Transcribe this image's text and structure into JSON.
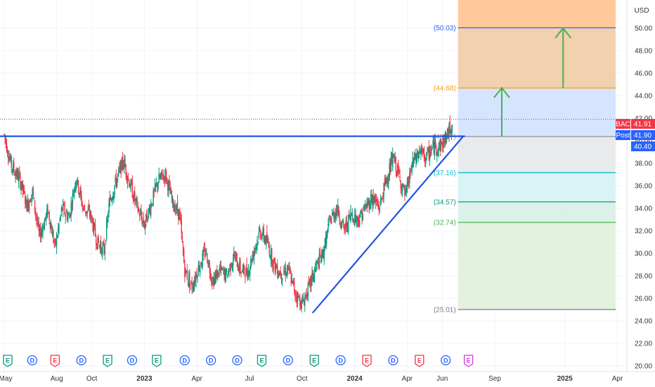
{
  "currency": "USD",
  "chart_data": {
    "type": "candlestick",
    "symbol": "BAC",
    "ylim": [
      19.5,
      52.5
    ],
    "y_ticks": [
      "20.00",
      "22.00",
      "24.00",
      "26.00",
      "28.00",
      "30.00",
      "32.00",
      "34.00",
      "36.00",
      "38.00",
      "40.00",
      "42.00",
      "44.00",
      "46.00",
      "48.00",
      "50.00"
    ],
    "x_ticks": [
      {
        "label": "May",
        "major": false
      },
      {
        "label": "Aug",
        "major": false
      },
      {
        "label": "Oct",
        "major": false
      },
      {
        "label": "2023",
        "major": true
      },
      {
        "label": "Apr",
        "major": false
      },
      {
        "label": "Jul",
        "major": false
      },
      {
        "label": "Oct",
        "major": false
      },
      {
        "label": "2024",
        "major": true
      },
      {
        "label": "Apr",
        "major": false
      },
      {
        "label": "Jun",
        "major": false
      },
      {
        "label": "Sep",
        "major": false
      },
      {
        "label": "2025",
        "major": true
      },
      {
        "label": "Apr",
        "major": false
      }
    ],
    "x_tick_months": [
      0,
      3,
      5,
      8,
      11,
      14,
      17,
      20,
      23,
      25,
      28,
      32,
      35
    ],
    "x_range_months": [
      0,
      35.3
    ],
    "price_path": [
      [
        0,
        40.5
      ],
      [
        0.4,
        37.8
      ],
      [
        0.9,
        36.5
      ],
      [
        1.3,
        34.2
      ],
      [
        1.6,
        35.5
      ],
      [
        2.0,
        31.5
      ],
      [
        2.5,
        33.8
      ],
      [
        2.9,
        30.5
      ],
      [
        3.3,
        34.0
      ],
      [
        3.7,
        33.2
      ],
      [
        4.1,
        36.8
      ],
      [
        4.5,
        34.0
      ],
      [
        4.9,
        33.5
      ],
      [
        5.3,
        31.0
      ],
      [
        5.7,
        30.2
      ],
      [
        6.0,
        34.5
      ],
      [
        6.4,
        36.5
      ],
      [
        6.8,
        38.2
      ],
      [
        7.2,
        36.0
      ],
      [
        7.6,
        34.0
      ],
      [
        8.0,
        32.5
      ],
      [
        8.4,
        34.5
      ],
      [
        8.8,
        36.5
      ],
      [
        9.2,
        37.0
      ],
      [
        9.6,
        34.5
      ],
      [
        10.0,
        33.5
      ],
      [
        10.3,
        28.5
      ],
      [
        10.7,
        27.0
      ],
      [
        11.1,
        28.8
      ],
      [
        11.5,
        30.2
      ],
      [
        11.9,
        27.5
      ],
      [
        12.3,
        28.5
      ],
      [
        12.7,
        28.0
      ],
      [
        13.1,
        29.8
      ],
      [
        13.5,
        28.5
      ],
      [
        13.9,
        28.3
      ],
      [
        14.2,
        30.0
      ],
      [
        14.6,
        32.0
      ],
      [
        15.0,
        31.0
      ],
      [
        15.4,
        29.0
      ],
      [
        15.8,
        28.2
      ],
      [
        16.2,
        28.6
      ],
      [
        16.6,
        26.5
      ],
      [
        17.0,
        25.5
      ],
      [
        17.4,
        27.0
      ],
      [
        17.8,
        28.8
      ],
      [
        18.2,
        30.0
      ],
      [
        18.6,
        33.0
      ],
      [
        19.0,
        34.0
      ],
      [
        19.4,
        32.0
      ],
      [
        19.8,
        33.5
      ],
      [
        20.2,
        33.0
      ],
      [
        20.6,
        34.0
      ],
      [
        21.0,
        35.0
      ],
      [
        21.4,
        34.0
      ],
      [
        21.8,
        36.5
      ],
      [
        22.2,
        38.5
      ],
      [
        22.5,
        37.0
      ],
      [
        22.9,
        35.0
      ],
      [
        23.3,
        38.0
      ],
      [
        23.7,
        39.0
      ],
      [
        24.1,
        38.5
      ],
      [
        24.5,
        39.5
      ],
      [
        24.9,
        39.5
      ],
      [
        25.3,
        40.5
      ],
      [
        25.6,
        41.9
      ]
    ],
    "last_price": "41.91",
    "post_price": "41.90",
    "level_price": "40.40",
    "badge_symbol": "BAC",
    "badge_post": "Post",
    "fib_levels": [
      {
        "label": "(50.03)",
        "value": 50.03,
        "color": "#2962ff"
      },
      {
        "label": "(44.68)",
        "value": 44.68,
        "color": "#f59c1a"
      },
      {
        "label": "(40.37)",
        "value": 40.37,
        "color": "#9598a1"
      },
      {
        "label": "(37.16)",
        "value": 37.16,
        "color": "#00bcd4"
      },
      {
        "label": "(34.57)",
        "value": 34.57,
        "color": "#089981"
      },
      {
        "label": "(32.74)",
        "value": 32.74,
        "color": "#4caf50"
      },
      {
        "label": "(25.01)",
        "value": 25.01,
        "color": "#787b86"
      }
    ],
    "fib_zones": [
      {
        "from": 50.03,
        "to": 52.5,
        "color": "#ffc08a"
      },
      {
        "from": 44.68,
        "to": 50.03,
        "color": "#f0c9a0"
      },
      {
        "from": 40.37,
        "to": 44.68,
        "color": "#cfe0ff"
      },
      {
        "from": 37.16,
        "to": 40.37,
        "color": "#e5e6e8"
      },
      {
        "from": 34.57,
        "to": 37.16,
        "color": "#d2f1f5"
      },
      {
        "from": 32.74,
        "to": 34.57,
        "color": "#d6efe5"
      },
      {
        "from": 25.01,
        "to": 32.74,
        "color": "#def0d9"
      }
    ],
    "fib_x_range": [
      25.9,
      34.9
    ],
    "resistance_line": {
      "value": 40.4,
      "color": "#1e53e5"
    },
    "trendline": {
      "from": [
        17.6,
        24.7
      ],
      "to": [
        26.2,
        40.4
      ],
      "color": "#1e53e5"
    },
    "arrows": [
      {
        "x": 28.4,
        "from": 40.4,
        "to": 44.7,
        "color": "#4caf50"
      },
      {
        "x": 31.9,
        "from": 44.7,
        "to": 50.0,
        "color": "#4caf50"
      }
    ],
    "events": [
      {
        "month": 0.2,
        "type": "E",
        "color": "#089981"
      },
      {
        "month": 1.6,
        "type": "D",
        "color": "#2962ff"
      },
      {
        "month": 2.9,
        "type": "E",
        "color": "#f23645"
      },
      {
        "month": 4.4,
        "type": "D",
        "color": "#2962ff"
      },
      {
        "month": 5.9,
        "type": "E",
        "color": "#089981"
      },
      {
        "month": 7.3,
        "type": "D",
        "color": "#2962ff"
      },
      {
        "month": 8.7,
        "type": "E",
        "color": "#089981"
      },
      {
        "month": 10.3,
        "type": "D",
        "color": "#2962ff"
      },
      {
        "month": 11.8,
        "type": "D",
        "color": "#2962ff"
      },
      {
        "month": 13.3,
        "type": "D",
        "color": "#2962ff"
      },
      {
        "month": 14.7,
        "type": "E",
        "color": "#089981"
      },
      {
        "month": 16.2,
        "type": "D",
        "color": "#2962ff"
      },
      {
        "month": 17.7,
        "type": "E",
        "color": "#089981"
      },
      {
        "month": 19.2,
        "type": "D",
        "color": "#2962ff"
      },
      {
        "month": 20.7,
        "type": "E",
        "color": "#f23645"
      },
      {
        "month": 22.2,
        "type": "D",
        "color": "#2962ff"
      },
      {
        "month": 23.7,
        "type": "E",
        "color": "#f23645"
      },
      {
        "month": 25.2,
        "type": "D",
        "color": "#2962ff"
      },
      {
        "month": 26.5,
        "type": "E",
        "color": "#d63ad9"
      }
    ]
  }
}
